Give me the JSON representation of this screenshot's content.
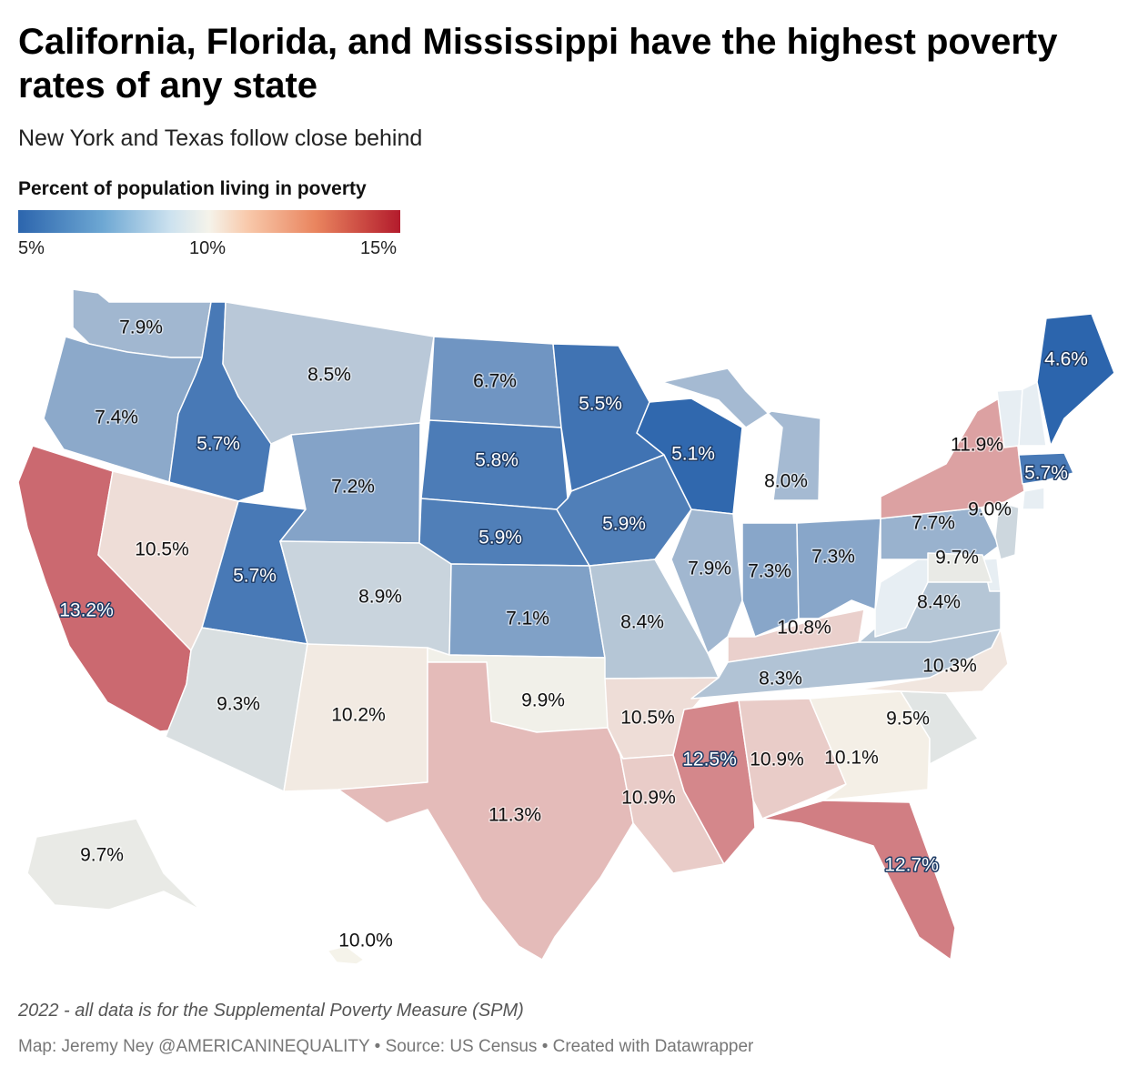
{
  "header": {
    "title": "California, Florida, and Mississippi have the highest poverty rates of any state",
    "subtitle": "New York and Texas follow close behind"
  },
  "legend": {
    "title": "Percent of population living in poverty",
    "min_label": "5%",
    "mid_label": "10%",
    "max_label": "15%",
    "scale": {
      "min": 5,
      "mid": 10,
      "max": 15
    },
    "colors": {
      "low": "#2c65ad",
      "mid": "#f5f3ea",
      "high": "#b31b2c"
    }
  },
  "map_data": {
    "type": "choropleth",
    "states": [
      {
        "state": "WA",
        "label": "7.9%",
        "value": 7.9
      },
      {
        "state": "OR",
        "label": "7.4%",
        "value": 7.4
      },
      {
        "state": "CA",
        "label": "13.2%",
        "value": 13.2
      },
      {
        "state": "ID",
        "label": "5.7%",
        "value": 5.7
      },
      {
        "state": "NV",
        "label": "10.5%",
        "value": 10.5
      },
      {
        "state": "UT",
        "label": "5.7%",
        "value": 5.7
      },
      {
        "state": "AZ",
        "label": "9.3%",
        "value": 9.3
      },
      {
        "state": "MT",
        "label": "8.5%",
        "value": 8.5
      },
      {
        "state": "WY",
        "label": "7.2%",
        "value": 7.2
      },
      {
        "state": "CO",
        "label": "8.9%",
        "value": 8.9
      },
      {
        "state": "NM",
        "label": "10.2%",
        "value": 10.2
      },
      {
        "state": "ND",
        "label": "6.7%",
        "value": 6.7
      },
      {
        "state": "SD",
        "label": "5.8%",
        "value": 5.8
      },
      {
        "state": "NE",
        "label": "5.9%",
        "value": 5.9
      },
      {
        "state": "KS",
        "label": "7.1%",
        "value": 7.1
      },
      {
        "state": "OK",
        "label": "9.9%",
        "value": 9.9
      },
      {
        "state": "TX",
        "label": "11.3%",
        "value": 11.3
      },
      {
        "state": "MN",
        "label": "5.5%",
        "value": 5.5
      },
      {
        "state": "IA",
        "label": "5.9%",
        "value": 5.9
      },
      {
        "state": "MO",
        "label": "8.4%",
        "value": 8.4
      },
      {
        "state": "AR",
        "label": "10.5%",
        "value": 10.5
      },
      {
        "state": "LA",
        "label": "10.9%",
        "value": 10.9
      },
      {
        "state": "WI",
        "label": "5.1%",
        "value": 5.1
      },
      {
        "state": "IL",
        "label": "7.9%",
        "value": 7.9
      },
      {
        "state": "MI",
        "label": "8.0%",
        "value": 8.0
      },
      {
        "state": "IN",
        "label": "7.3%",
        "value": 7.3
      },
      {
        "state": "OH",
        "label": "7.3%",
        "value": 7.3
      },
      {
        "state": "KY",
        "label": "10.8%",
        "value": 10.8
      },
      {
        "state": "TN",
        "label": "8.3%",
        "value": 8.3
      },
      {
        "state": "MS",
        "label": "12.5%",
        "value": 12.5
      },
      {
        "state": "AL",
        "label": "10.9%",
        "value": 10.9
      },
      {
        "state": "GA",
        "label": "10.1%",
        "value": 10.1
      },
      {
        "state": "FL",
        "label": "12.7%",
        "value": 12.7
      },
      {
        "state": "SC",
        "label": "9.5%",
        "value": 9.5
      },
      {
        "state": "NC",
        "label": "10.3%",
        "value": 10.3
      },
      {
        "state": "VA",
        "label": "8.4%",
        "value": 8.4
      },
      {
        "state": "WV",
        "label": "",
        "value": null
      },
      {
        "state": "PA",
        "label": "7.7%",
        "value": 7.7
      },
      {
        "state": "NY",
        "label": "11.9%",
        "value": 11.9
      },
      {
        "state": "NJ",
        "label": "9.0%",
        "value": 9.0
      },
      {
        "state": "DE",
        "label": "",
        "value": null
      },
      {
        "state": "MD",
        "label": "9.7%",
        "value": 9.7
      },
      {
        "state": "CT",
        "label": "",
        "value": null
      },
      {
        "state": "MA",
        "label": "5.7%",
        "value": 5.7
      },
      {
        "state": "VT",
        "label": "",
        "value": null
      },
      {
        "state": "NH",
        "label": "",
        "value": null
      },
      {
        "state": "ME",
        "label": "4.6%",
        "value": 4.6
      },
      {
        "state": "AK",
        "label": "9.7%",
        "value": 9.7
      },
      {
        "state": "HI",
        "label": "10.0%",
        "value": 10.0
      }
    ]
  },
  "footer": {
    "note": "2022 - all data is for the Supplemental Poverty Measure (SPM)",
    "credit": "Map: Jeremy Ney @AMERICANINEQUALITY • Source: US Census • Created with Datawrapper"
  }
}
